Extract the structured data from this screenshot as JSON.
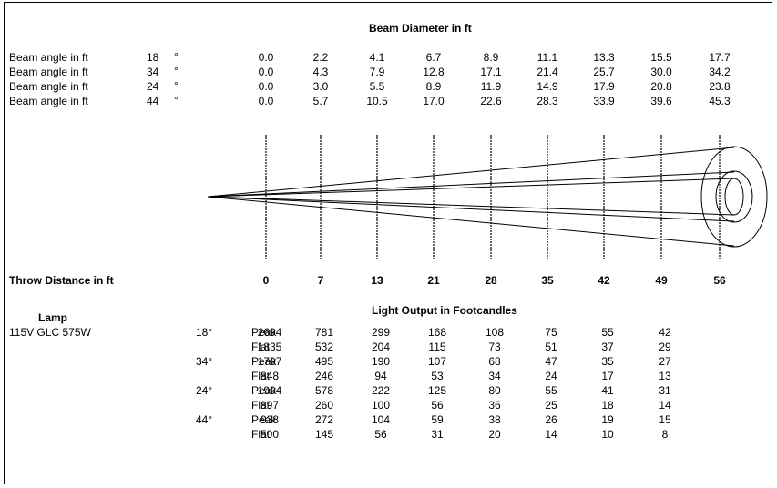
{
  "beam_title": "Beam Diameter in ft",
  "beam_rows": [
    {
      "label": "Beam angle in ft",
      "angle": "18",
      "deg": "°",
      "values": [
        "0.0",
        "2.2",
        "4.1",
        "6.7",
        "8.9",
        "11.1",
        "13.3",
        "15.5",
        "17.7"
      ]
    },
    {
      "label": "Beam angle in ft",
      "angle": "34",
      "deg": "°",
      "values": [
        "0.0",
        "4.3",
        "7.9",
        "12.8",
        "17.1",
        "21.4",
        "25.7",
        "30.0",
        "34.2"
      ]
    },
    {
      "label": "Beam angle in ft",
      "angle": "24",
      "deg": "°",
      "values": [
        "0.0",
        "3.0",
        "5.5",
        "8.9",
        "11.9",
        "14.9",
        "17.9",
        "20.8",
        "23.8"
      ]
    },
    {
      "label": "Beam angle in ft",
      "angle": "44",
      "deg": "°",
      "values": [
        "0.0",
        "5.7",
        "10.5",
        "17.0",
        "22.6",
        "28.3",
        "33.9",
        "39.6",
        "45.3"
      ]
    }
  ],
  "throw_label": "Throw Distance in ft",
  "throw_values": [
    "0",
    "7",
    "13",
    "21",
    "28",
    "35",
    "42",
    "49",
    "56"
  ],
  "light_title": "Light Output in Footcandles",
  "lamp_header": "Lamp",
  "lamp_name": "115V GLC 575W",
  "output_rows": [
    {
      "angle": "18°",
      "type": "Peak",
      "values": [
        "2694",
        "781",
        "299",
        "168",
        "108",
        "75",
        "55",
        "42"
      ]
    },
    {
      "angle": "",
      "type": "Flat",
      "values": [
        "1835",
        "532",
        "204",
        "115",
        "73",
        "51",
        "37",
        "29"
      ]
    },
    {
      "angle": "34°",
      "type": "Peak",
      "values": [
        "1707",
        "495",
        "190",
        "107",
        "68",
        "47",
        "35",
        "27"
      ]
    },
    {
      "angle": "",
      "type": "Flat",
      "values": [
        "848",
        "246",
        "94",
        "53",
        "34",
        "24",
        "17",
        "13"
      ]
    },
    {
      "angle": "24°",
      "type": "Peak",
      "values": [
        "1994",
        "578",
        "222",
        "125",
        "80",
        "55",
        "41",
        "31"
      ]
    },
    {
      "angle": "",
      "type": "Flat",
      "values": [
        "897",
        "260",
        "100",
        "56",
        "36",
        "25",
        "18",
        "14"
      ]
    },
    {
      "angle": "44°",
      "type": "Peak",
      "values": [
        "938",
        "272",
        "104",
        "59",
        "38",
        "26",
        "19",
        "15"
      ]
    },
    {
      "angle": "",
      "type": "Flat",
      "values": [
        "500",
        "145",
        "56",
        "31",
        "20",
        "14",
        "10",
        "8"
      ]
    }
  ]
}
